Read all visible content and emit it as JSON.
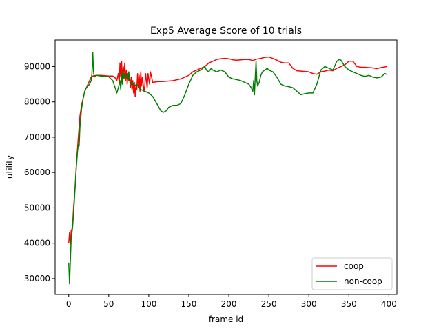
{
  "chart_data": {
    "type": "line",
    "title": "Exp5 Average Score of 10 trials",
    "xlabel": "frame id",
    "ylabel": "utility",
    "xlim": [
      -17,
      410
    ],
    "ylim": [
      25500,
      97500
    ],
    "xticks": [
      0,
      50,
      100,
      150,
      200,
      250,
      300,
      350,
      400
    ],
    "yticks": [
      30000,
      40000,
      50000,
      60000,
      70000,
      80000,
      90000
    ],
    "grid": false,
    "legend_position": "lower-right",
    "series": [
      {
        "name": "coop",
        "color": "#ff0000",
        "points": [
          [
            0,
            40000
          ],
          [
            1,
            43000
          ],
          [
            2,
            39500
          ],
          [
            3,
            43500
          ],
          [
            4,
            44000
          ],
          [
            5,
            46000
          ],
          [
            6,
            50000
          ],
          [
            8,
            56000
          ],
          [
            10,
            64000
          ],
          [
            12,
            70000
          ],
          [
            14,
            76000
          ],
          [
            16,
            79000
          ],
          [
            18,
            81000
          ],
          [
            20,
            83000
          ],
          [
            22,
            84000
          ],
          [
            24,
            85000
          ],
          [
            26,
            86000
          ],
          [
            28,
            87000
          ],
          [
            30,
            87300
          ],
          [
            35,
            87500
          ],
          [
            40,
            87500
          ],
          [
            45,
            87400
          ],
          [
            50,
            87300
          ],
          [
            55,
            87300
          ],
          [
            58,
            86800
          ],
          [
            60,
            86000
          ],
          [
            62,
            88000
          ],
          [
            63,
            85000
          ],
          [
            64,
            91000
          ],
          [
            65,
            87000
          ],
          [
            66,
            91500
          ],
          [
            67,
            86000
          ],
          [
            68,
            90000
          ],
          [
            69,
            88000
          ],
          [
            70,
            91000
          ],
          [
            71,
            86000
          ],
          [
            72,
            89000
          ],
          [
            73,
            85000
          ],
          [
            74,
            88000
          ],
          [
            75,
            86000
          ],
          [
            76,
            87000
          ],
          [
            77,
            84000
          ],
          [
            78,
            87000
          ],
          [
            79,
            83500
          ],
          [
            80,
            86000
          ],
          [
            81,
            82500
          ],
          [
            82,
            85500
          ],
          [
            83,
            81500
          ],
          [
            84,
            84500
          ],
          [
            85,
            83500
          ],
          [
            86,
            88000
          ],
          [
            87,
            84000
          ],
          [
            88,
            87500
          ],
          [
            89,
            83000
          ],
          [
            90,
            88500
          ],
          [
            91,
            84500
          ],
          [
            92,
            87000
          ],
          [
            93,
            85000
          ],
          [
            94,
            83000
          ],
          [
            95,
            84500
          ],
          [
            96,
            88000
          ],
          [
            97,
            86000
          ],
          [
            98,
            84000
          ],
          [
            99,
            88000
          ],
          [
            100,
            86500
          ],
          [
            101,
            85000
          ],
          [
            102,
            88500
          ],
          [
            104,
            86500
          ],
          [
            105,
            85500
          ],
          [
            110,
            85700
          ],
          [
            120,
            85800
          ],
          [
            130,
            86000
          ],
          [
            140,
            86500
          ],
          [
            150,
            87500
          ],
          [
            155,
            88500
          ],
          [
            160,
            89000
          ],
          [
            165,
            89500
          ],
          [
            170,
            90000
          ],
          [
            175,
            91000
          ],
          [
            180,
            91500
          ],
          [
            185,
            92000
          ],
          [
            190,
            92200
          ],
          [
            195,
            92300
          ],
          [
            200,
            92200
          ],
          [
            205,
            91900
          ],
          [
            210,
            91800
          ],
          [
            215,
            91900
          ],
          [
            220,
            92000
          ],
          [
            225,
            92000
          ],
          [
            230,
            91700
          ],
          [
            235,
            92100
          ],
          [
            240,
            92300
          ],
          [
            245,
            92600
          ],
          [
            250,
            92700
          ],
          [
            255,
            92300
          ],
          [
            260,
            91800
          ],
          [
            265,
            91200
          ],
          [
            270,
            91000
          ],
          [
            275,
            91000
          ],
          [
            280,
            89500
          ],
          [
            285,
            88800
          ],
          [
            290,
            88700
          ],
          [
            295,
            88600
          ],
          [
            300,
            88500
          ],
          [
            305,
            88000
          ],
          [
            310,
            87800
          ],
          [
            315,
            88500
          ],
          [
            320,
            88700
          ],
          [
            325,
            89000
          ],
          [
            330,
            88800
          ],
          [
            335,
            89500
          ],
          [
            340,
            90000
          ],
          [
            345,
            90500
          ],
          [
            350,
            91500
          ],
          [
            355,
            91500
          ],
          [
            360,
            90000
          ],
          [
            365,
            89800
          ],
          [
            370,
            89800
          ],
          [
            375,
            89700
          ],
          [
            380,
            89600
          ],
          [
            385,
            89400
          ],
          [
            390,
            89700
          ],
          [
            395,
            89900
          ],
          [
            398,
            90000
          ]
        ]
      },
      {
        "name": "non-coop",
        "color": "#008000",
        "points": [
          [
            0,
            34500
          ],
          [
            1,
            28500
          ],
          [
            2,
            35000
          ],
          [
            3,
            41000
          ],
          [
            5,
            45000
          ],
          [
            7,
            52000
          ],
          [
            9,
            60000
          ],
          [
            11,
            66000
          ],
          [
            12,
            68000
          ],
          [
            13,
            67500
          ],
          [
            14,
            73000
          ],
          [
            16,
            78000
          ],
          [
            18,
            81000
          ],
          [
            20,
            83000
          ],
          [
            22,
            84000
          ],
          [
            24,
            84500
          ],
          [
            26,
            85000
          ],
          [
            28,
            86000
          ],
          [
            29,
            88000
          ],
          [
            30,
            94000
          ],
          [
            31,
            88500
          ],
          [
            32,
            87000
          ],
          [
            35,
            87500
          ],
          [
            40,
            87300
          ],
          [
            45,
            87200
          ],
          [
            50,
            87100
          ],
          [
            55,
            86000
          ],
          [
            58,
            84000
          ],
          [
            60,
            82500
          ],
          [
            62,
            84000
          ],
          [
            64,
            86000
          ],
          [
            65,
            83500
          ],
          [
            66,
            88000
          ],
          [
            67,
            85000
          ],
          [
            68,
            89000
          ],
          [
            69,
            86500
          ],
          [
            70,
            88000
          ],
          [
            72,
            87500
          ],
          [
            74,
            86500
          ],
          [
            75,
            88500
          ],
          [
            76,
            86000
          ],
          [
            78,
            85000
          ],
          [
            80,
            85500
          ],
          [
            82,
            84500
          ],
          [
            85,
            85000
          ],
          [
            88,
            84000
          ],
          [
            90,
            83500
          ],
          [
            95,
            83000
          ],
          [
            100,
            82500
          ],
          [
            105,
            81500
          ],
          [
            110,
            79500
          ],
          [
            115,
            77500
          ],
          [
            118,
            77000
          ],
          [
            122,
            77500
          ],
          [
            125,
            78500
          ],
          [
            130,
            79000
          ],
          [
            135,
            79000
          ],
          [
            140,
            79500
          ],
          [
            145,
            82000
          ],
          [
            150,
            85000
          ],
          [
            155,
            87500
          ],
          [
            160,
            88500
          ],
          [
            165,
            89000
          ],
          [
            170,
            90000
          ],
          [
            172,
            89000
          ],
          [
            175,
            88500
          ],
          [
            178,
            89500
          ],
          [
            180,
            89000
          ],
          [
            185,
            88500
          ],
          [
            190,
            89000
          ],
          [
            195,
            88500
          ],
          [
            200,
            87000
          ],
          [
            205,
            86500
          ],
          [
            210,
            86300
          ],
          [
            215,
            86000
          ],
          [
            220,
            85500
          ],
          [
            225,
            85000
          ],
          [
            228,
            84000
          ],
          [
            230,
            83000
          ],
          [
            231,
            86000
          ],
          [
            232,
            82000
          ],
          [
            233,
            87000
          ],
          [
            234,
            91500
          ],
          [
            235,
            86000
          ],
          [
            236,
            84500
          ],
          [
            238,
            85500
          ],
          [
            240,
            87500
          ],
          [
            242,
            88500
          ],
          [
            245,
            89000
          ],
          [
            248,
            89500
          ],
          [
            250,
            89000
          ],
          [
            255,
            88500
          ],
          [
            260,
            87000
          ],
          [
            265,
            85000
          ],
          [
            270,
            84500
          ],
          [
            275,
            84300
          ],
          [
            280,
            84000
          ],
          [
            285,
            83000
          ],
          [
            290,
            82000
          ],
          [
            295,
            82300
          ],
          [
            300,
            82500
          ],
          [
            305,
            82500
          ],
          [
            310,
            85000
          ],
          [
            315,
            89000
          ],
          [
            320,
            90000
          ],
          [
            325,
            89500
          ],
          [
            330,
            89000
          ],
          [
            335,
            91500
          ],
          [
            338,
            92000
          ],
          [
            340,
            91800
          ],
          [
            345,
            90000
          ],
          [
            350,
            89000
          ],
          [
            355,
            88500
          ],
          [
            360,
            88000
          ],
          [
            365,
            87500
          ],
          [
            370,
            87200
          ],
          [
            375,
            87500
          ],
          [
            380,
            87000
          ],
          [
            385,
            86800
          ],
          [
            390,
            87000
          ],
          [
            395,
            88000
          ],
          [
            398,
            87700
          ]
        ]
      }
    ]
  }
}
